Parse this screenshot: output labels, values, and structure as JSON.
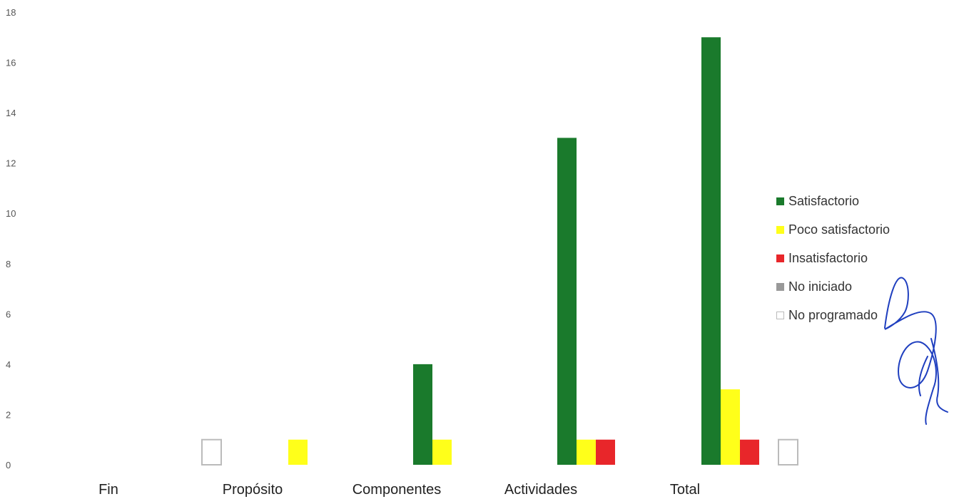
{
  "chart_data": {
    "type": "bar",
    "title": "",
    "xlabel": "",
    "ylabel": "",
    "categories": [
      "Fin",
      "Propósito",
      "Componentes",
      "Actividades",
      "Total"
    ],
    "yticks": [
      "0",
      "2",
      "4",
      "6",
      "8",
      "10",
      "12",
      "14",
      "16",
      "18"
    ],
    "ylim": [
      0,
      18
    ],
    "grid": false,
    "legend_position": "right",
    "series": [
      {
        "name": "Satisfactorio",
        "color": "#1a7a2c",
        "values": [
          0,
          0,
          4,
          13,
          17
        ]
      },
      {
        "name": "Poco satisfactorio",
        "color": "#ffff1a",
        "values": [
          0,
          1,
          1,
          1,
          3
        ]
      },
      {
        "name": "Insatisfactorio",
        "color": "#e8262a",
        "values": [
          0,
          0,
          0,
          1,
          1
        ]
      },
      {
        "name": "No iniciado",
        "color": "#999999",
        "values": [
          0,
          0,
          0,
          0,
          0
        ]
      },
      {
        "name": "No programado",
        "color": "#ffffff",
        "outline": "#bbbbbb",
        "values": [
          1,
          0,
          0,
          0,
          1
        ]
      }
    ]
  }
}
